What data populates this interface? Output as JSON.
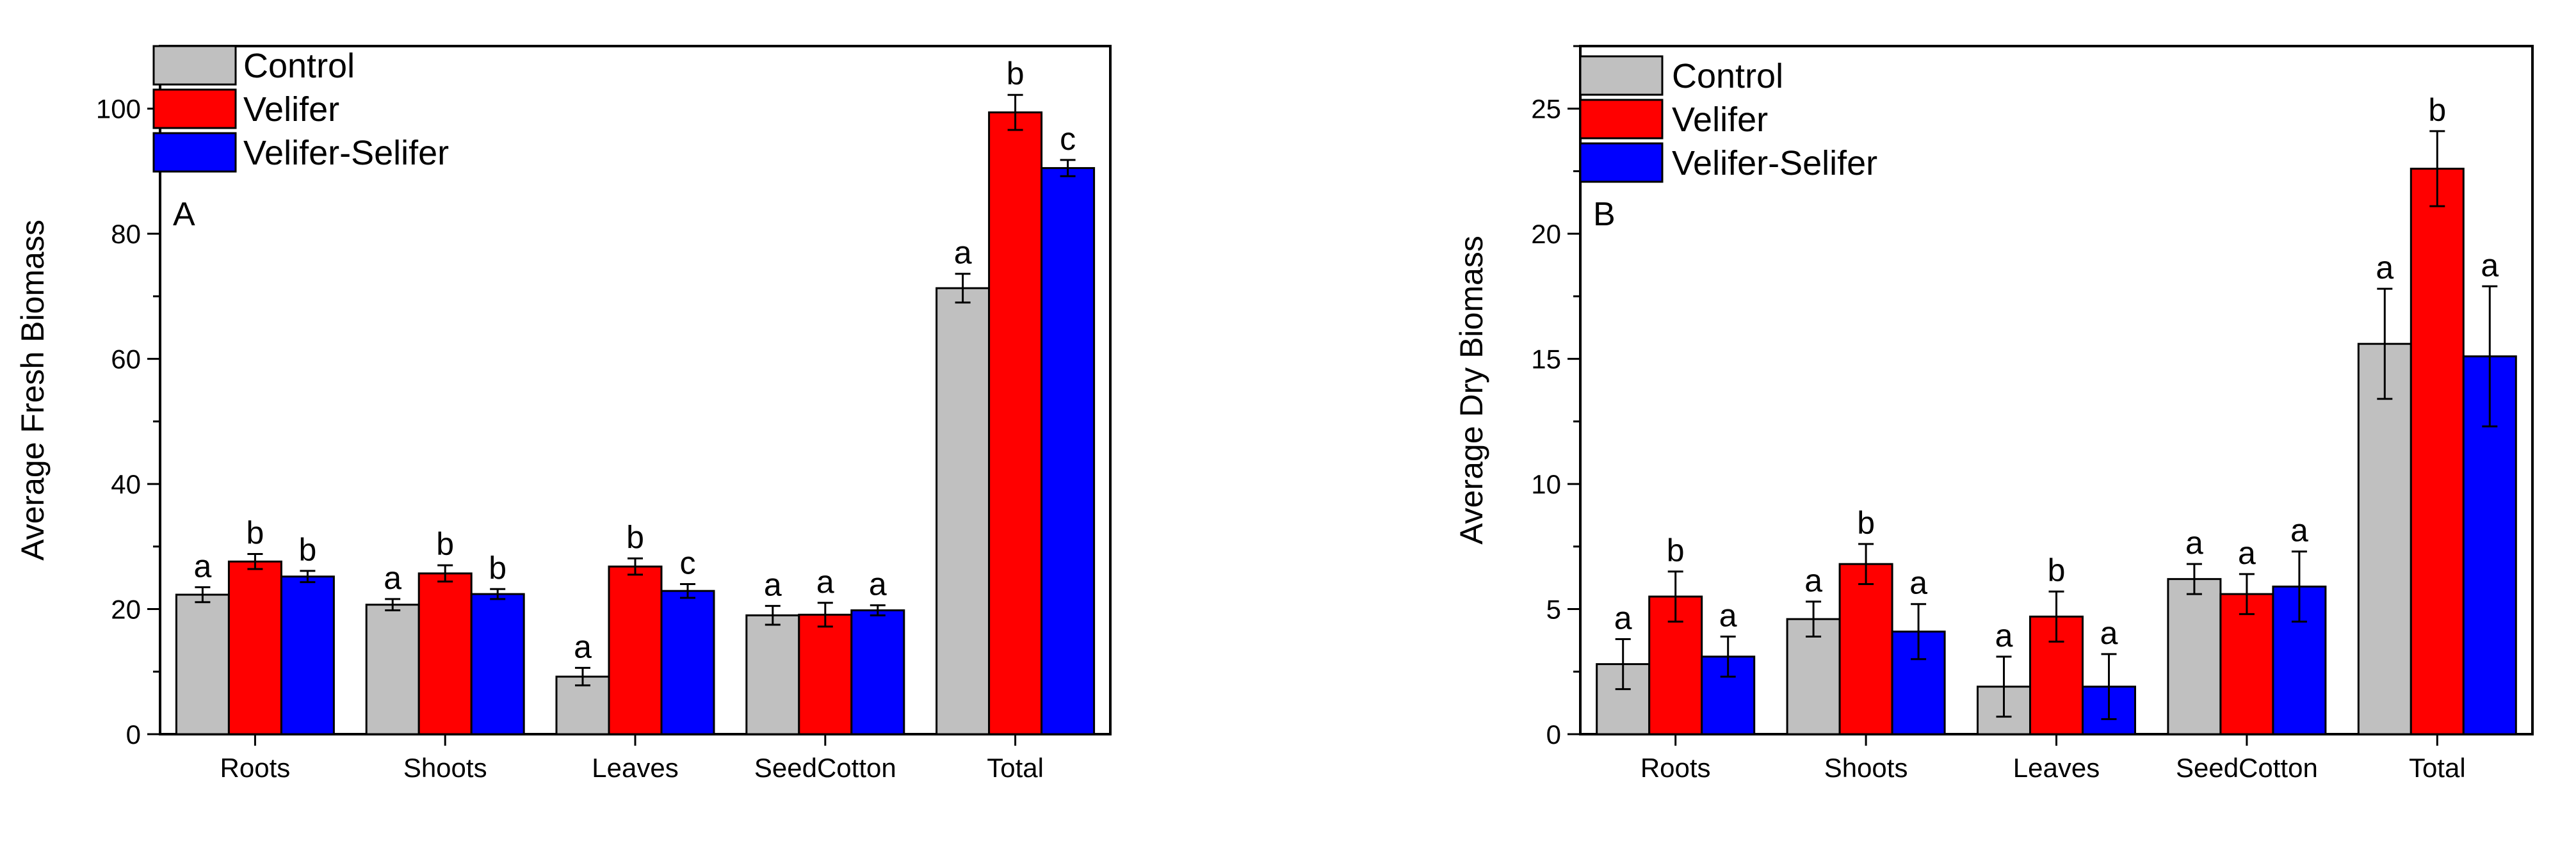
{
  "legend": {
    "items": [
      {
        "label": "Control",
        "color": "#c0c0c0"
      },
      {
        "label": "Velifer",
        "color": "#ff0000"
      },
      {
        "label": "Velifer-Selifer",
        "color": "#0000ff"
      }
    ]
  },
  "chart_data": [
    {
      "type": "bar",
      "panel_label": "A",
      "title": "",
      "xlabel": "",
      "ylabel": "Average Fresh Biomass",
      "ylim": [
        0,
        110
      ],
      "yticks": [
        0,
        20,
        40,
        60,
        80,
        100
      ],
      "ytick_labels": [
        "0",
        "20",
        "40",
        "60",
        "80",
        "100"
      ],
      "categories": [
        "Roots",
        "Shoots",
        "Leaves",
        "SeedCotton",
        "Total"
      ],
      "series": [
        {
          "name": "Control",
          "color": "#c0c0c0",
          "values": [
            22.3,
            20.7,
            9.2,
            19.0,
            71.3
          ],
          "errors": [
            1.2,
            0.9,
            1.4,
            1.5,
            2.3
          ],
          "letters": [
            "a",
            "a",
            "a",
            "a",
            "a"
          ]
        },
        {
          "name": "Velifer",
          "color": "#ff0000",
          "values": [
            27.6,
            25.7,
            26.8,
            19.1,
            99.4
          ],
          "errors": [
            1.2,
            1.3,
            1.3,
            1.9,
            2.8
          ],
          "letters": [
            "b",
            "b",
            "b",
            "a",
            "b"
          ]
        },
        {
          "name": "Velifer-Selifer",
          "color": "#0000ff",
          "values": [
            25.2,
            22.4,
            22.9,
            19.8,
            90.5
          ],
          "errors": [
            0.9,
            0.8,
            1.1,
            0.8,
            1.3
          ],
          "letters": [
            "b",
            "b",
            "c",
            "a",
            "c"
          ]
        }
      ]
    },
    {
      "type": "bar",
      "panel_label": "B",
      "title": "",
      "xlabel": "",
      "ylabel": "Average Dry Biomass",
      "ylim": [
        0,
        27.5
      ],
      "yticks": [
        0,
        5,
        10,
        15,
        20,
        25
      ],
      "ytick_labels": [
        "0",
        "5",
        "10",
        "15",
        "20",
        "25"
      ],
      "categories": [
        "Roots",
        "Shoots",
        "Leaves",
        "SeedCotton",
        "Total"
      ],
      "series": [
        {
          "name": "Control",
          "color": "#c0c0c0",
          "values": [
            2.8,
            4.6,
            1.9,
            6.2,
            15.6
          ],
          "errors": [
            1.0,
            0.7,
            1.2,
            0.6,
            2.2
          ],
          "letters": [
            "a",
            "a",
            "a",
            "a",
            "a"
          ]
        },
        {
          "name": "Velifer",
          "color": "#ff0000",
          "values": [
            5.5,
            6.8,
            4.7,
            5.6,
            22.6
          ],
          "errors": [
            1.0,
            0.8,
            1.0,
            0.8,
            1.5
          ],
          "letters": [
            "b",
            "b",
            "b",
            "a",
            "b"
          ]
        },
        {
          "name": "Velifer-Selifer",
          "color": "#0000ff",
          "values": [
            3.1,
            4.1,
            1.9,
            5.9,
            15.1
          ],
          "errors": [
            0.8,
            1.1,
            1.3,
            1.4,
            2.8
          ],
          "letters": [
            "a",
            "a",
            "a",
            "a",
            "a"
          ]
        }
      ]
    }
  ]
}
